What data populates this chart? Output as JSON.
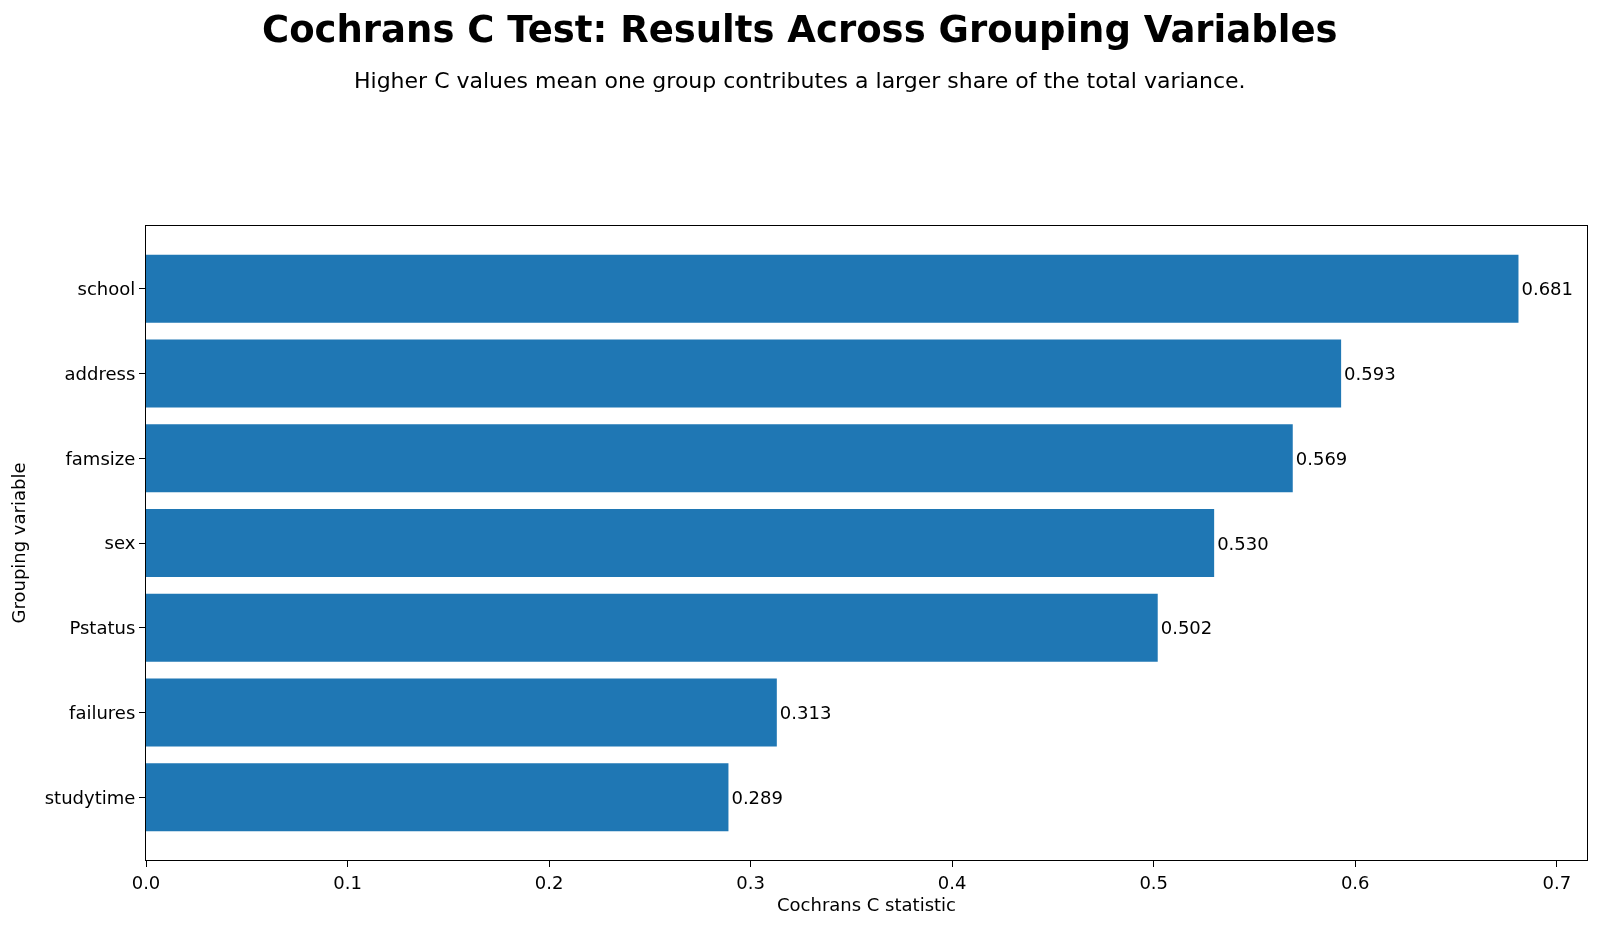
{
  "chart_data": {
    "type": "bar",
    "orientation": "horizontal",
    "title": "Cochrans C Test: Results Across Grouping Variables",
    "subtitle": "Higher C values mean one group contributes a larger share of the total variance.",
    "xlabel": "Cochrans C statistic",
    "ylabel": "Grouping variable",
    "categories": [
      "school",
      "address",
      "famsize",
      "sex",
      "Pstatus",
      "failures",
      "studytime"
    ],
    "values": [
      0.681,
      0.593,
      0.569,
      0.53,
      0.502,
      0.313,
      0.289
    ],
    "value_labels": [
      "0.681",
      "0.593",
      "0.569",
      "0.530",
      "0.502",
      "0.313",
      "0.289"
    ],
    "color": "#1f77b4",
    "xlim": [
      0,
      0.715
    ],
    "xticks": [
      {
        "value": 0,
        "label": "0.0"
      },
      0.1,
      0.2,
      0.3,
      0.4,
      0.5,
      0.6,
      0.7
    ]
  }
}
